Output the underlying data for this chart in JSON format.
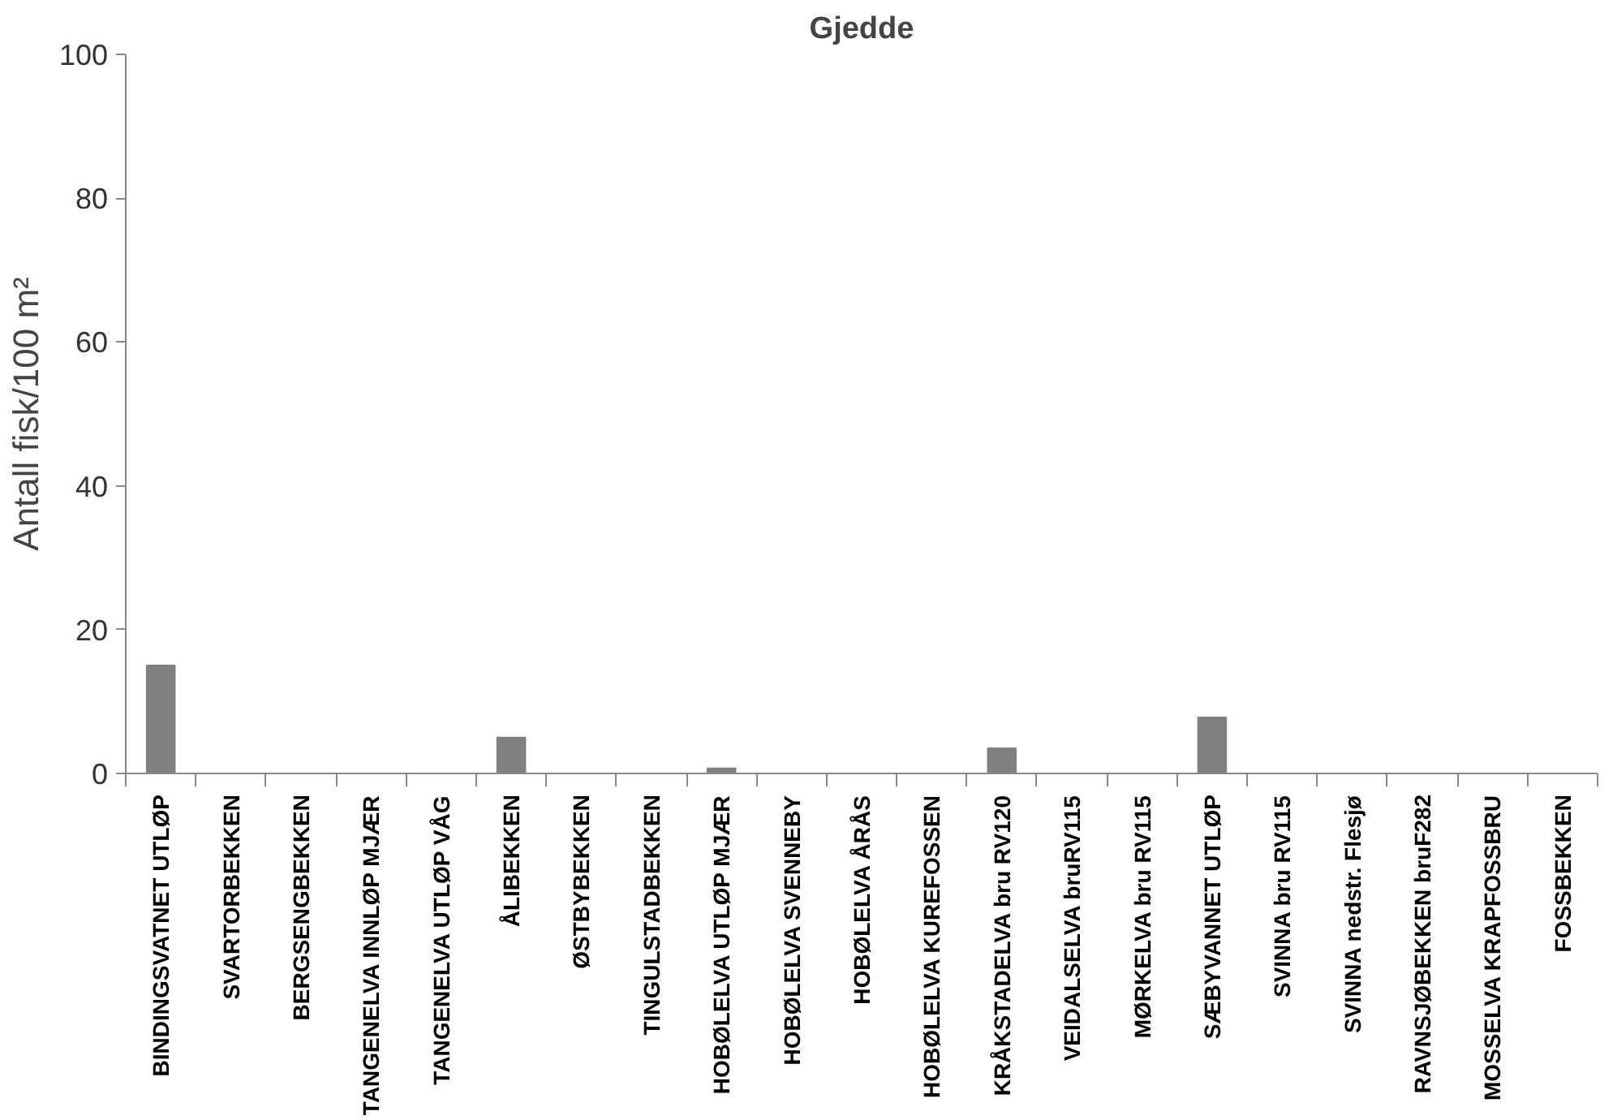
{
  "chart_data": {
    "type": "bar",
    "title": "Gjedde",
    "ylabel": "Antall fisk/100 m²",
    "categories": [
      "BINDINGSVATNET UTLØP",
      "SVARTORBEKKEN",
      "BERGSENGBEKKEN",
      "TANGENELVA INNLØP MJÆR",
      "TANGENELVA UTLØP VÅG",
      "ÅLIBEKKEN",
      "ØSTBYBEKKEN",
      "TINGULSTADBEKKEN",
      "HOBØLELVA UTLØP MJÆR",
      "HOBØLELVA SVENNEBY",
      "HOBØLELVA ÅRÅS",
      "HOBØLELVA KUREFOSSEN",
      "KRÅKSTADELVA bru RV120",
      "VEIDALSELVA bruRV115",
      "MØRKELVA bru RV115",
      "SÆBYVANNET UTLØP",
      "SVINNA bru RV115",
      "SVINNA nedstr. Flesjø",
      "RAVNSJØBEKKEN bruF282",
      "MOSSELVA KRAPFOSSBRU",
      "FOSSBEKKEN"
    ],
    "values": [
      15,
      0,
      0,
      0,
      0,
      5,
      0,
      0,
      0.7,
      0,
      0,
      0,
      3.5,
      0,
      0,
      7.8,
      0,
      0,
      0,
      0,
      0
    ],
    "color": "#808080",
    "ylim": [
      0,
      100
    ],
    "yticks": [
      0,
      20,
      40,
      60,
      80,
      100
    ],
    "grid": false
  }
}
